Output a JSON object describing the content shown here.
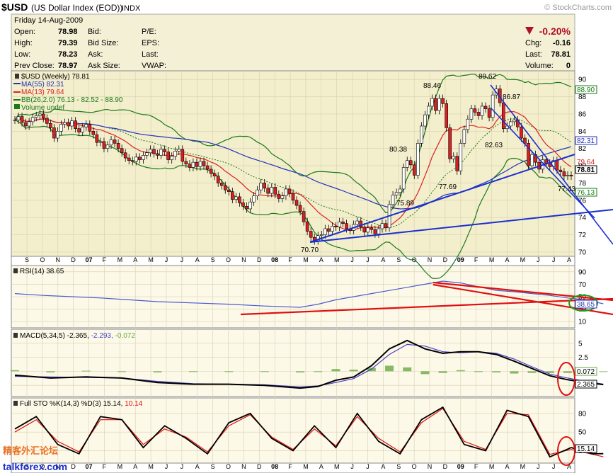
{
  "header": {
    "ticker": "$USD",
    "name": "(US Dollar Index (EOD))",
    "exchange": "INDX",
    "brand": "© StockCharts.com"
  },
  "quote": {
    "date": "Friday  14-Aug-2009",
    "open_label": "Open:",
    "open": "78.98",
    "high_label": "High:",
    "high": "79.39",
    "low_label": "Low:",
    "low": "78.23",
    "prev_close_label": "Prev Close:",
    "prev_close": "78.97",
    "bid_label": "Bid:",
    "bid_size_label": "Bid Size:",
    "ask_label": "Ask:",
    "ask_size_label": "Ask Size:",
    "pe_label": "P/E:",
    "eps_label": "EPS:",
    "last_label": "Last:",
    "vwap_label": "VWAP:",
    "pct_change": "-0.20%",
    "chg_label": "Chg:",
    "chg": "-0.16",
    "last2_label": "Last:",
    "last": "78.81",
    "volume_label": "Volume:",
    "volume": "0"
  },
  "colors": {
    "up_candle": "#ffffff",
    "down_candle": "#dd1f1f",
    "ma55": "#2233bb",
    "ma13": "#dd2222",
    "bb": "#1a7a1a",
    "trendline": "#1a2fd0",
    "rsi_trend": "#e01010",
    "highlight_green": "#1a9e1a",
    "highlight_red": "#e01010",
    "macd": "#000000",
    "signal": "#4a40c8",
    "histogram": "#66aa44",
    "sto_k": "#000000",
    "sto_d": "#e01010",
    "panel_bg_price": "#f3eecb",
    "panel_bg_ind": "#fdf9e8"
  },
  "legend": {
    "price": "$USD (Weekly) 78.81",
    "ma55": "MA(55) 82.31",
    "ma13": "MA(13) 79.64",
    "bb_prefix": "BB(26,2.0) 76.13 - 82.52 - 88.90",
    "volume": "Volume undef",
    "rsi": "RSI(14) 38.65",
    "macd_prefix": "MACD(5,34,5) -2.365,",
    "macd_signal": " -2.293,",
    "macd_hist": " -0.072",
    "sto_prefix": "Full STO %K(14,3) %D(3) 15.14,",
    "sto_d": " 10.14"
  },
  "price_labels": {
    "p8846": "88.46",
    "p8962": "89.62",
    "p8687": "86.87",
    "p8038": "80.38",
    "p8263": "82.63",
    "p7769": "77.69",
    "p7589": "75.89",
    "p7743": "77.43",
    "p7070": "70.70"
  },
  "axis_tags": {
    "p8890": "88.90",
    "p8231": "82.31",
    "p7964": "79.64",
    "p7881": "78.81",
    "p7613": "76.13",
    "rsi": "38.65",
    "macd_pos": "0.072",
    "macd_neg": "2.365",
    "sto": "15.14"
  },
  "watermark": {
    "cn": "精客外汇论坛",
    "site": "talkforex.com"
  },
  "chart_data": [
    {
      "type": "candlestick",
      "title": "$USD (Weekly) 78.81",
      "x_ticks": [
        "S",
        "O",
        "N",
        "D",
        "07",
        "F",
        "M",
        "A",
        "M",
        "J",
        "J",
        "A",
        "S",
        "O",
        "N",
        "D",
        "08",
        "F",
        "M",
        "A",
        "M",
        "J",
        "J",
        "A",
        "S",
        "O",
        "N",
        "D",
        "09",
        "F",
        "M",
        "A",
        "M",
        "J",
        "J",
        "A"
      ],
      "y_ticks": [
        70,
        72,
        74,
        76,
        78,
        80,
        82,
        84,
        86,
        88,
        90
      ],
      "ylim": [
        69.5,
        91
      ],
      "close": [
        85.3,
        85.7,
        85.0,
        84.6,
        85.1,
        85.6,
        85.8,
        86.0,
        85.5,
        84.9,
        84.4,
        83.2,
        84.0,
        84.8,
        85.0,
        84.6,
        85.2,
        84.3,
        83.9,
        84.5,
        84.8,
        84.0,
        83.6,
        82.7,
        82.8,
        82.0,
        82.4,
        83.0,
        82.6,
        82.0,
        81.5,
        80.9,
        80.6,
        80.5,
        81.0,
        80.7,
        81.2,
        81.5,
        81.9,
        81.4,
        81.2,
        81.9,
        81.6,
        80.7,
        81.1,
        81.7,
        81.9,
        80.5,
        80.2,
        79.8,
        80.4,
        79.9,
        80.5,
        80.0,
        79.6,
        79.1,
        78.8,
        78.0,
        77.7,
        77.2,
        77.0,
        76.1,
        76.4,
        75.7,
        75.3,
        75.0,
        75.8,
        76.5,
        77.2,
        78.0,
        77.4,
        76.8,
        77.5,
        76.7,
        76.2,
        76.5,
        77.3,
        76.8,
        76.0,
        75.4,
        74.7,
        73.5,
        72.4,
        71.7,
        71.3,
        71.9,
        72.0,
        72.7,
        72.4,
        73.0,
        72.9,
        73.5,
        73.3,
        72.7,
        72.5,
        73.2,
        73.6,
        72.9,
        72.3,
        72.8,
        72.6,
        72.1,
        72.7,
        73.3,
        72.8,
        75.5,
        76.6,
        76.9,
        77.3,
        79.8,
        80.6,
        80.1,
        78.9,
        82.6,
        84.6,
        85.9,
        86.9,
        87.8,
        86.4,
        87.8,
        87.2,
        84.4,
        80.8,
        81.1,
        79.4,
        82.6,
        84.2,
        85.4,
        86.6,
        86.2,
        85.8,
        86.9,
        86.6,
        85.6,
        88.2,
        88.9,
        87.3,
        84.3,
        84.6,
        85.1,
        85.3,
        84.5,
        83.2,
        82.6,
        80.0,
        81.3,
        80.4,
        79.6,
        80.7,
        80.3,
        79.9,
        80.6,
        79.5,
        79.3,
        78.8,
        78.9,
        78.8
      ],
      "overlays": [
        "MA(55) 82.31",
        "MA(13) 79.64",
        "BB(26,2.0) 76.13 - 82.52 - 88.90"
      ]
    },
    {
      "type": "line",
      "title": "RSI(14) 38.65",
      "y_ticks": [
        10,
        30,
        50,
        70,
        90
      ],
      "ylim": [
        0,
        100
      ],
      "x": [
        0,
        8,
        16,
        24,
        32,
        40,
        50,
        60,
        70,
        80,
        85,
        90,
        95,
        100,
        105,
        110,
        115,
        120,
        125,
        130,
        135,
        140,
        145,
        150,
        155,
        160,
        165
      ],
      "values": [
        55,
        52,
        50,
        48,
        45,
        42,
        40,
        38,
        35,
        33,
        38,
        45,
        50,
        55,
        60,
        65,
        70,
        75,
        72,
        66,
        60,
        58,
        55,
        52,
        48,
        45,
        38.65
      ]
    },
    {
      "type": "line",
      "title": "MACD(5,34,5) -2.365, -2.293, -0.072",
      "y_ticks": [
        -2.5,
        0,
        2.5,
        5.0
      ],
      "ylim": [
        -4.5,
        7.5
      ],
      "x": [
        0,
        10,
        20,
        30,
        40,
        50,
        60,
        70,
        80,
        85,
        90,
        95,
        100,
        105,
        110,
        115,
        120,
        125,
        130,
        135,
        140,
        145,
        150,
        155,
        160,
        165
      ],
      "series": [
        {
          "name": "MACD",
          "values": [
            -0.7,
            -1.2,
            -1.0,
            -1.2,
            -2.0,
            -2.3,
            -2.3,
            -2.5,
            -3.0,
            -2.7,
            -1.6,
            -1.0,
            1.0,
            4.0,
            5.5,
            4.0,
            3.2,
            3.5,
            3.5,
            3.0,
            1.8,
            0.5,
            -0.8,
            -1.5,
            -2.0,
            -2.365
          ]
        },
        {
          "name": "Signal",
          "values": [
            -0.9,
            -1.0,
            -1.1,
            -1.2,
            -1.8,
            -2.2,
            -2.3,
            -2.4,
            -2.8,
            -2.6,
            -2.0,
            -1.3,
            0.4,
            3.0,
            4.8,
            4.5,
            3.5,
            3.3,
            3.5,
            3.2,
            2.2,
            0.8,
            -0.5,
            -1.2,
            -1.8,
            -2.293
          ]
        }
      ]
    },
    {
      "type": "line",
      "title": "Full STO %K(14,3) %D(3) 15.14, 10.14",
      "y_ticks": [
        20,
        50,
        80
      ],
      "ylim": [
        0,
        105
      ],
      "x": [
        0,
        6,
        12,
        18,
        24,
        30,
        36,
        42,
        48,
        54,
        60,
        66,
        72,
        78,
        84,
        90,
        96,
        102,
        108,
        114,
        120,
        126,
        132,
        138,
        144,
        150,
        156,
        162,
        165
      ],
      "series": [
        {
          "name": "%K",
          "values": [
            55,
            75,
            30,
            15,
            75,
            70,
            25,
            60,
            40,
            15,
            65,
            80,
            40,
            20,
            60,
            25,
            80,
            35,
            15,
            70,
            90,
            30,
            20,
            85,
            75,
            10,
            25,
            15,
            15.14
          ]
        },
        {
          "name": "%D",
          "values": [
            50,
            70,
            35,
            18,
            70,
            70,
            30,
            55,
            42,
            18,
            60,
            78,
            42,
            22,
            55,
            28,
            75,
            40,
            18,
            65,
            88,
            35,
            22,
            80,
            78,
            14,
            22,
            14,
            10.14
          ]
        }
      ]
    }
  ]
}
